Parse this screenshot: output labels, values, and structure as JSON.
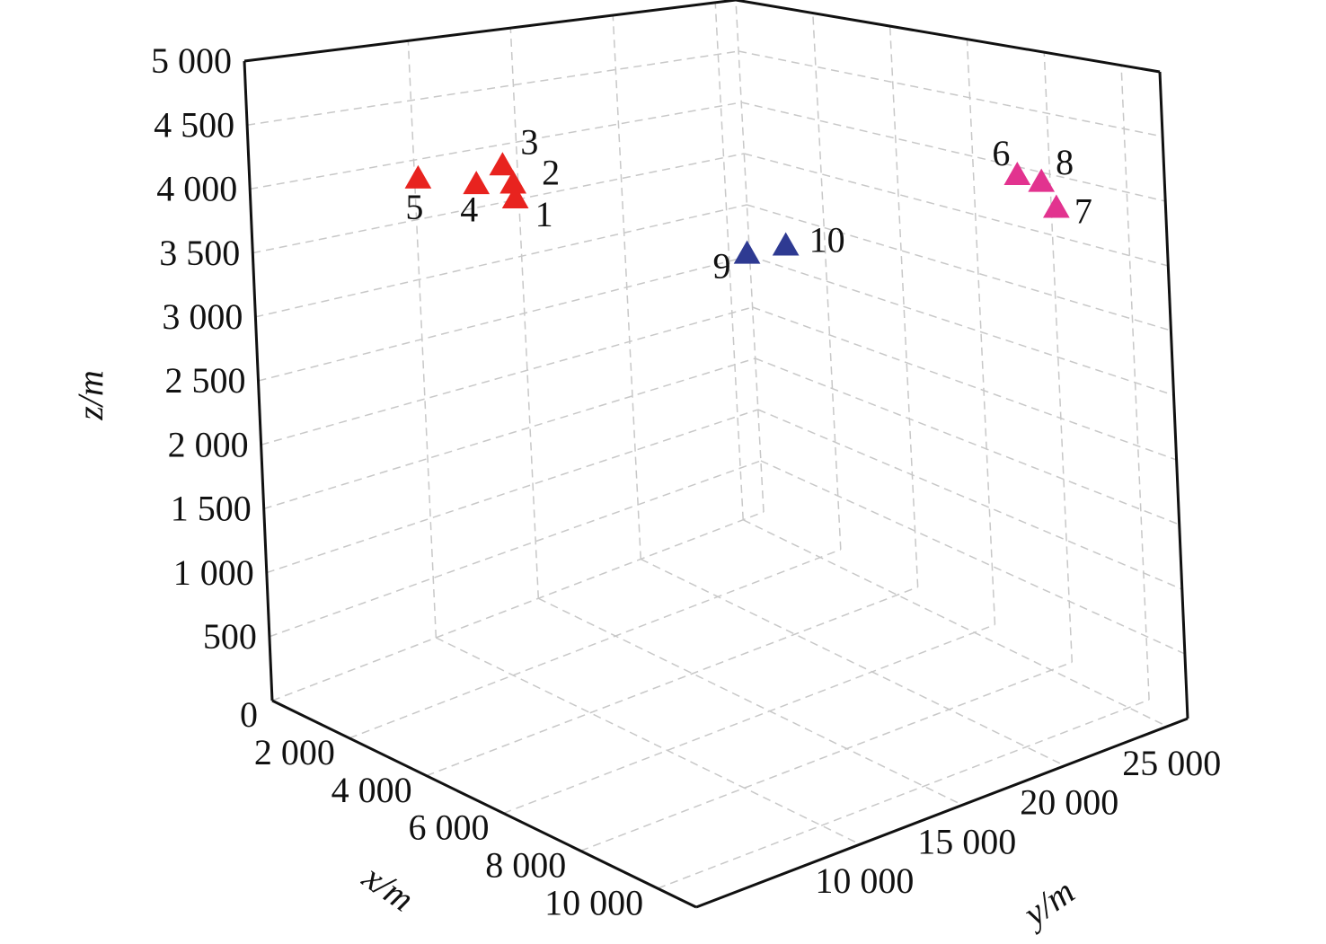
{
  "chart_data": {
    "type": "scatter3d",
    "xlabel": "x/m",
    "ylabel": "y/m",
    "zlabel": "z/m",
    "xlim": [
      0,
      11000
    ],
    "ylim": [
      2000,
      26000
    ],
    "zlim": [
      0,
      5000
    ],
    "xticks": [
      0,
      {
        "value": 2000,
        "label": "2 000"
      },
      {
        "value": 4000,
        "label": "4 000"
      },
      {
        "value": 6000,
        "label": "6 000"
      },
      {
        "value": 8000,
        "label": "8 000"
      },
      {
        "value": 10000,
        "label": "10 000"
      }
    ],
    "yticks": [
      {
        "value": 10000,
        "label": "10 000"
      },
      {
        "value": 15000,
        "label": "15 000"
      },
      {
        "value": 20000,
        "label": "20 000"
      },
      {
        "value": 25000,
        "label": "25 000"
      }
    ],
    "zticks": [
      500,
      {
        "value": 1000,
        "label": "1 000"
      },
      {
        "value": 1500,
        "label": "1 500"
      },
      {
        "value": 2000,
        "label": "2 000"
      },
      {
        "value": 2500,
        "label": "2 500"
      },
      {
        "value": 3000,
        "label": "3 000"
      },
      {
        "value": 3500,
        "label": "3 500"
      },
      {
        "value": 4000,
        "label": "4 000"
      },
      {
        "value": 4500,
        "label": "4 500"
      },
      {
        "value": 5000,
        "label": "5 000"
      }
    ],
    "grid": true,
    "series": [
      {
        "color": "#e8231f",
        "labels": [
          "1",
          "2",
          "3",
          "4",
          "5"
        ],
        "x": [
          3160,
          3010,
          2970,
          2640,
          2040
        ],
        "y": [
          9000,
          9200,
          8800,
          8100,
          6400
        ],
        "z": [
          3950,
          4050,
          4200,
          4050,
          4100
        ]
      },
      {
        "color": "#e2338f",
        "labels": [
          "6",
          "7",
          "8"
        ],
        "x": [
          8500,
          9000,
          8800
        ],
        "y": [
          23500,
          24400,
          24100
        ],
        "z": [
          4100,
          3850,
          4050
        ]
      },
      {
        "color": "#2e3a92",
        "labels": [
          "9",
          "10"
        ],
        "x": [
          5600,
          6300
        ],
        "y": [
          15600,
          16200
        ],
        "z": [
          3500,
          3600
        ]
      }
    ]
  }
}
